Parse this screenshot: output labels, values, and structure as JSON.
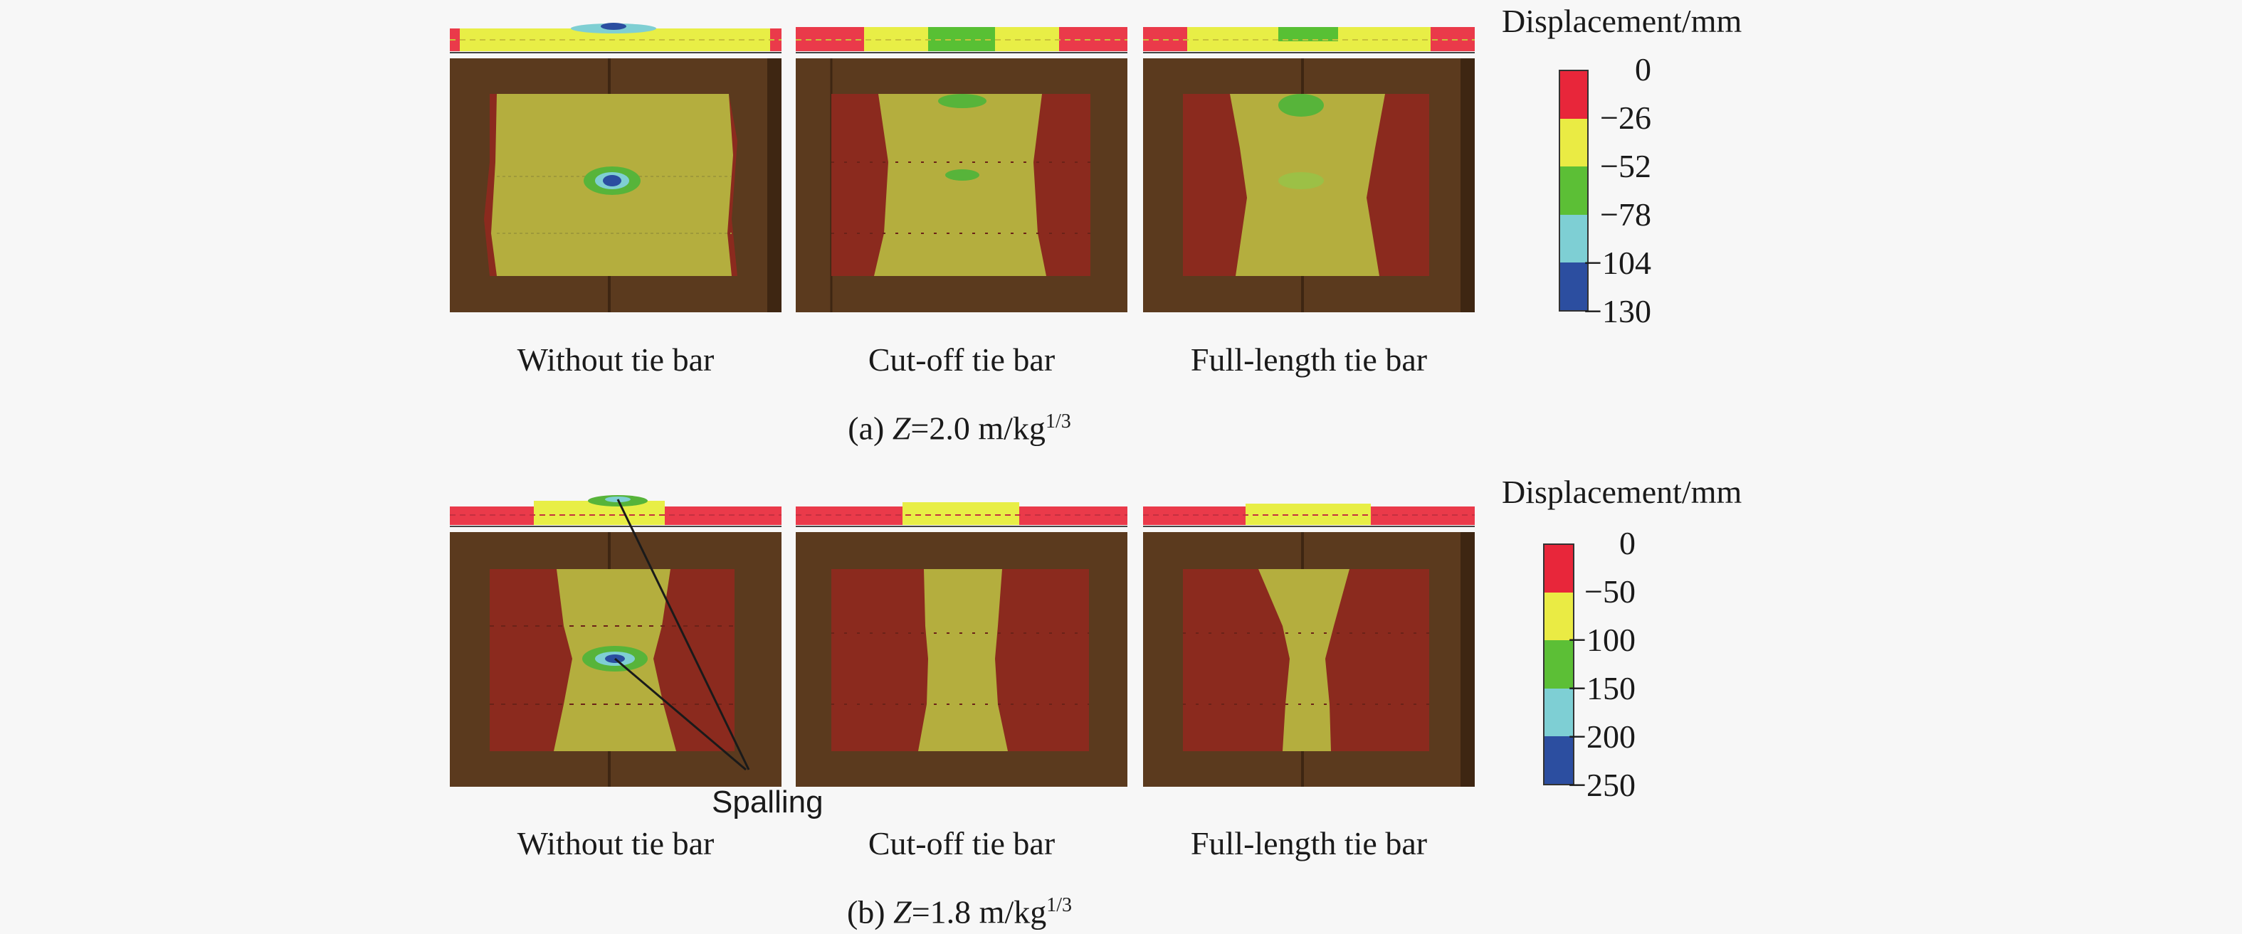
{
  "colors": {
    "frame": "#5b3a1e",
    "frame_dark": "#3e2612",
    "red": "#8b2a1e",
    "yellow_green": "#b4ae3e",
    "green": "#57b43a",
    "cyan": "#7fcfd3",
    "blue": "#2b4ea0",
    "strip_red": "#ea3a4a",
    "strip_yellow": "#e8ee46",
    "strip_green": "#58c034"
  },
  "legend_colors": [
    "#e8263a",
    "#eaeb44",
    "#5cbf36",
    "#7ecfd4",
    "#2c4ea0"
  ],
  "section_a": {
    "caption_prefix": "(a) ",
    "caption_z": "Z",
    "caption_value": "=2.0 m/kg",
    "caption_exp": "1/3",
    "legend_title": "Displacement/mm",
    "ticks": [
      "0",
      "−26",
      "−52",
      "−78",
      "−104",
      "−130"
    ],
    "panels": [
      {
        "label": "Without tie bar"
      },
      {
        "label": "Cut-off tie bar"
      },
      {
        "label": "Full-length tie bar"
      }
    ]
  },
  "section_b": {
    "caption_prefix": "(b) ",
    "caption_z": "Z",
    "caption_value": "=1.8 m/kg",
    "caption_exp": "1/3",
    "legend_title": "Displacement/mm",
    "ticks": [
      "0",
      "−50",
      "−100",
      "−150",
      "−200",
      "−250"
    ],
    "annotation": "Spalling",
    "panels": [
      {
        "label": "Without tie bar"
      },
      {
        "label": "Cut-off tie bar"
      },
      {
        "label": "Full-length tie bar"
      }
    ]
  }
}
